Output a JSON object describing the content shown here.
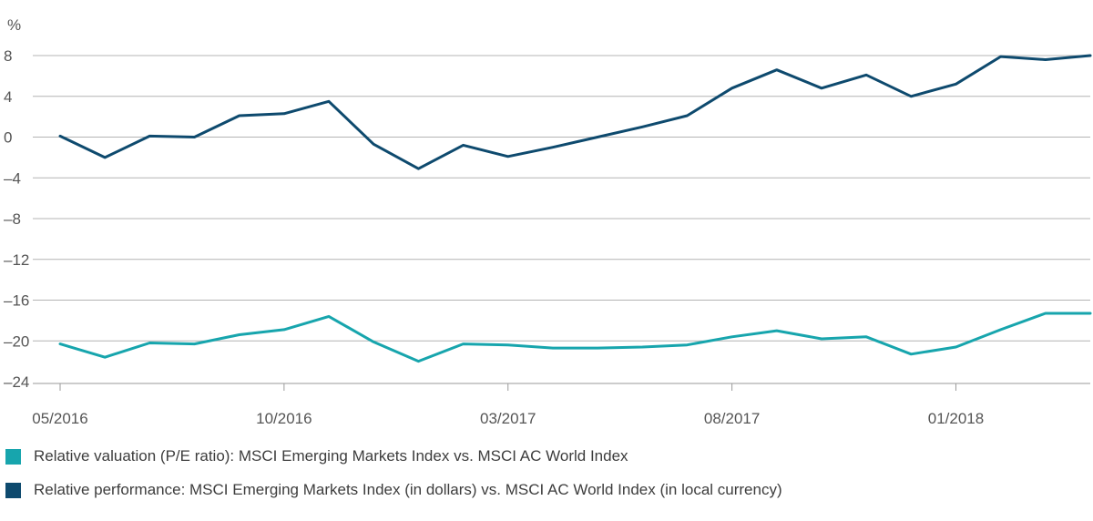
{
  "chart_data": {
    "type": "line",
    "y_unit_label": "%",
    "ylim": [
      -24,
      8
    ],
    "y_ticks": [
      8,
      4,
      0,
      -4,
      -8,
      -12,
      -16,
      -20,
      -24
    ],
    "y_tick_labels": [
      "8",
      "4",
      "0",
      "–4",
      "–8",
      "–12",
      "–16",
      "–20",
      "–24"
    ],
    "x_tick_labels": [
      "05/2016",
      "10/2016",
      "03/2017",
      "08/2017",
      "01/2018"
    ],
    "x": [
      "05/2016",
      "06/2016",
      "07/2016",
      "08/2016",
      "09/2016",
      "10/2016",
      "11/2016",
      "12/2016",
      "01/2017",
      "02/2017",
      "03/2017",
      "04/2017",
      "05/2017",
      "06/2017",
      "07/2017",
      "08/2017",
      "09/2017",
      "10/2017",
      "11/2017",
      "12/2017",
      "01/2018",
      "02/2018",
      "03/2018",
      "04/2018"
    ],
    "grid": "horizontal",
    "legend_position": "bottom-left",
    "series": [
      {
        "name": "Relative valuation (P/E ratio): MSCI Emerging Markets Index vs. MSCI AC World Index",
        "color": "#17a5ad",
        "values": [
          -20.3,
          -21.6,
          -20.2,
          -20.3,
          -19.4,
          -18.9,
          -17.6,
          -20.1,
          -22.0,
          -20.3,
          -20.4,
          -20.7,
          -20.7,
          -20.6,
          -20.4,
          -19.6,
          -19.0,
          -19.8,
          -19.6,
          -21.3,
          -20.6,
          -18.9,
          -17.3,
          -17.3
        ]
      },
      {
        "name": "Relative performance: MSCI Emerging Markets Index (in dollars) vs. MSCI AC World Index (in local currency)",
        "color": "#0e4a6e",
        "values": [
          0.1,
          -2.0,
          0.1,
          0.0,
          2.1,
          2.3,
          3.5,
          -0.7,
          -3.1,
          -0.8,
          -1.9,
          -1.0,
          0.0,
          1.0,
          2.1,
          4.8,
          6.6,
          4.8,
          6.1,
          4.0,
          5.2,
          7.9,
          7.6,
          8.0
        ]
      }
    ]
  }
}
